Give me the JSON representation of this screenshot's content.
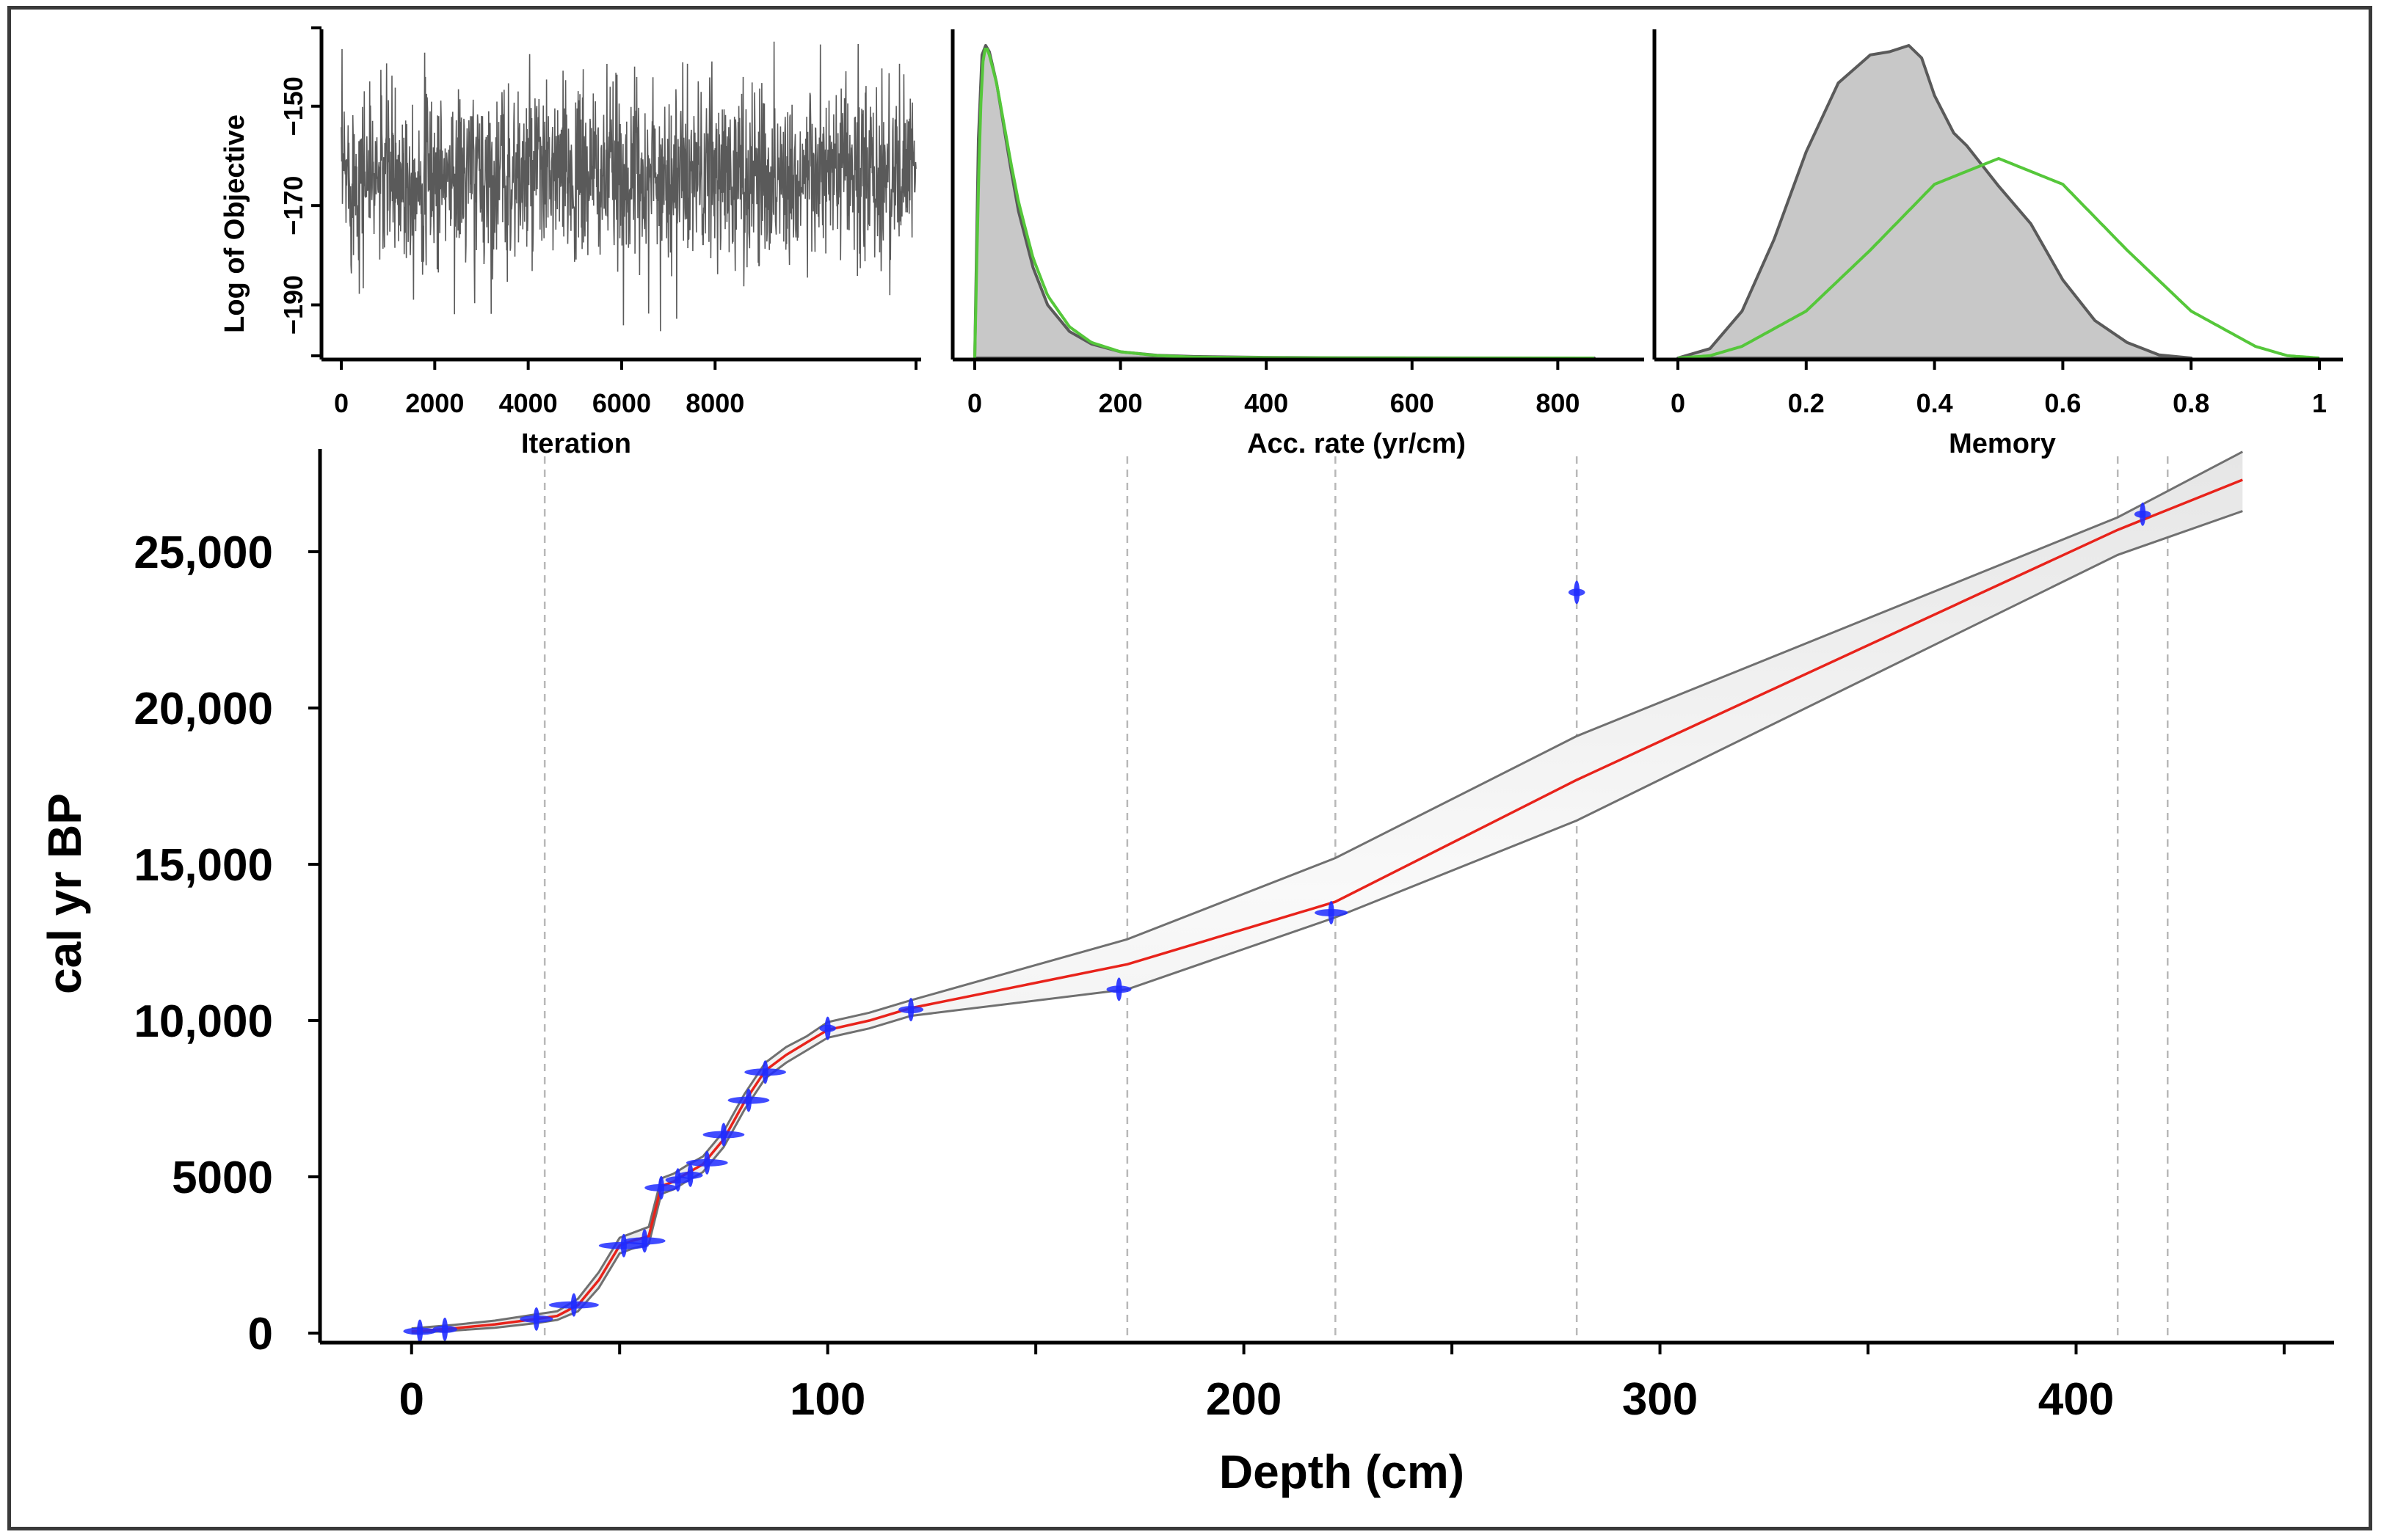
{
  "chart_data": [
    {
      "type": "line",
      "panel": "trace",
      "title": "",
      "xlabel": "Iteration",
      "ylabel": "Log of Objective",
      "x_ticks": [
        0,
        2000,
        4000,
        6000,
        8000
      ],
      "x_tick_labels": [
        "0",
        "2000",
        "4000",
        "6000",
        "8000"
      ],
      "y_ticks": [
        -150,
        -170,
        -190
      ],
      "y_tick_labels": [
        "−150",
        "−170",
        "−190"
      ],
      "xlim": [
        0,
        12300
      ],
      "ylim": [
        -201,
        -136
      ],
      "series": [
        {
          "name": "log objective trace",
          "mean": -164,
          "sd": 9,
          "min": -198,
          "max": -137,
          "n_iter": 12300
        }
      ]
    },
    {
      "type": "area",
      "panel": "accumulation rate",
      "xlabel": "Acc. rate (yr/cm)",
      "x_ticks": [
        0,
        200,
        400,
        600,
        800
      ],
      "x_tick_labels": [
        "0",
        "200",
        "400",
        "600",
        "800"
      ],
      "xlim": [
        0,
        850
      ],
      "series": [
        {
          "name": "posterior",
          "x": [
            0,
            5,
            10,
            15,
            20,
            30,
            40,
            50,
            60,
            80,
            100,
            130,
            160,
            200,
            250,
            300,
            400,
            500,
            600,
            700,
            850
          ],
          "values": [
            0,
            0.7,
            0.97,
            1.0,
            0.98,
            0.88,
            0.74,
            0.6,
            0.47,
            0.29,
            0.17,
            0.085,
            0.045,
            0.02,
            0.009,
            0.005,
            0.002,
            0.001,
            0.0005,
            0.0002,
            0
          ]
        },
        {
          "name": "prior",
          "x": [
            0,
            5,
            10,
            15,
            20,
            30,
            40,
            50,
            60,
            80,
            100,
            130,
            160,
            200,
            250,
            300,
            400,
            500,
            600,
            700,
            850
          ],
          "values": [
            0,
            0.55,
            0.93,
            1.0,
            0.97,
            0.88,
            0.75,
            0.62,
            0.5,
            0.32,
            0.2,
            0.1,
            0.05,
            0.02,
            0.008,
            0.003,
            0.001,
            0.0003,
            0.0001,
            0,
            0
          ]
        }
      ]
    },
    {
      "type": "area",
      "panel": "memory",
      "xlabel": "Memory",
      "x_ticks": [
        0,
        0.2,
        0.4,
        0.6,
        0.8,
        1
      ],
      "x_tick_labels": [
        "0",
        "0.2",
        "0.4",
        "0.6",
        "0.8",
        "1"
      ],
      "xlim": [
        0,
        1
      ],
      "series": [
        {
          "name": "posterior",
          "x": [
            0,
            0.05,
            0.1,
            0.15,
            0.2,
            0.25,
            0.3,
            0.33,
            0.36,
            0.38,
            0.4,
            0.43,
            0.45,
            0.5,
            0.55,
            0.6,
            0.65,
            0.7,
            0.75,
            0.8
          ],
          "values": [
            0,
            0.03,
            0.15,
            0.38,
            0.66,
            0.88,
            0.97,
            0.98,
            1.0,
            0.96,
            0.84,
            0.72,
            0.68,
            0.55,
            0.43,
            0.25,
            0.12,
            0.05,
            0.01,
            0
          ]
        },
        {
          "name": "prior",
          "x": [
            0,
            0.05,
            0.1,
            0.2,
            0.3,
            0.4,
            0.5,
            0.6,
            0.7,
            0.8,
            0.9,
            0.95,
            1.0
          ],
          "values": [
            0,
            0.01,
            0.05,
            0.2,
            0.46,
            0.74,
            0.85,
            0.74,
            0.46,
            0.2,
            0.05,
            0.01,
            0
          ]
        }
      ]
    },
    {
      "type": "line",
      "panel": "age-depth model",
      "title": "",
      "xlabel": "Depth (cm)",
      "ylabel": "cal yr BP",
      "x_ticks": [
        0,
        100,
        200,
        300,
        400
      ],
      "x_tick_labels": [
        "0",
        "100",
        "200",
        "300",
        "400"
      ],
      "x_minor_ticks": [
        50,
        150,
        250,
        350,
        450
      ],
      "y_ticks": [
        0,
        5000,
        10000,
        15000,
        20000,
        25000
      ],
      "y_tick_labels": [
        "0",
        "5000",
        "10,000",
        "15,000",
        "20,000",
        "25,000"
      ],
      "xlim": [
        -22,
        462
      ],
      "ylim": [
        -550,
        28600
      ],
      "hiatus_depths": [
        32,
        172,
        222,
        280,
        410,
        422
      ],
      "series": [
        {
          "name": "mean age model",
          "x": [
            0,
            10,
            20,
            30,
            35,
            40,
            45,
            50,
            53,
            57,
            60,
            63,
            66,
            70,
            75,
            80,
            85,
            90,
            95,
            100,
            110,
            120,
            172,
            222,
            280,
            410,
            440
          ],
          "values": [
            50,
            150,
            280,
            450,
            550,
            900,
            1700,
            2800,
            2950,
            3100,
            4700,
            4850,
            5100,
            5400,
            6200,
            7400,
            8400,
            8900,
            9300,
            9700,
            10000,
            10400,
            11800,
            13800,
            17700,
            25700,
            27300
          ]
        },
        {
          "name": "upper 95% range",
          "x": [
            0,
            10,
            20,
            30,
            35,
            40,
            45,
            50,
            53,
            57,
            60,
            63,
            66,
            70,
            75,
            80,
            85,
            90,
            95,
            100,
            110,
            120,
            172,
            222,
            280,
            410,
            440
          ],
          "values": [
            150,
            260,
            400,
            600,
            700,
            1100,
            1950,
            3050,
            3200,
            3400,
            4950,
            5100,
            5350,
            5650,
            6450,
            7650,
            8650,
            9150,
            9500,
            9950,
            10250,
            10650,
            12600,
            15200,
            19100,
            26100,
            28200
          ]
        },
        {
          "name": "lower 95% range",
          "x": [
            0,
            10,
            20,
            30,
            35,
            40,
            45,
            50,
            53,
            57,
            60,
            63,
            66,
            70,
            75,
            80,
            85,
            90,
            95,
            100,
            110,
            120,
            172,
            222,
            280,
            410,
            440
          ],
          "values": [
            0,
            80,
            170,
            320,
            420,
            700,
            1450,
            2550,
            2700,
            2850,
            4450,
            4600,
            4850,
            5150,
            5950,
            7150,
            8150,
            8650,
            9050,
            9450,
            9750,
            10150,
            11000,
            13300,
            16400,
            24900,
            26300
          ]
        }
      ],
      "dates": [
        {
          "depth": 2,
          "age": 60,
          "width_cm": 8
        },
        {
          "depth": 8,
          "age": 120,
          "width_cm": 6
        },
        {
          "depth": 30,
          "age": 450,
          "width_cm": 8
        },
        {
          "depth": 39,
          "age": 900,
          "width_cm": 12
        },
        {
          "depth": 51,
          "age": 2800,
          "width_cm": 12
        },
        {
          "depth": 56,
          "age": 2950,
          "width_cm": 10
        },
        {
          "depth": 60,
          "age": 4650,
          "width_cm": 8
        },
        {
          "depth": 64,
          "age": 4900,
          "width_cm": 6
        },
        {
          "depth": 67,
          "age": 5050,
          "width_cm": 6
        },
        {
          "depth": 71,
          "age": 5450,
          "width_cm": 10
        },
        {
          "depth": 75,
          "age": 6350,
          "width_cm": 10
        },
        {
          "depth": 81,
          "age": 7450,
          "width_cm": 10
        },
        {
          "depth": 85,
          "age": 8350,
          "width_cm": 10
        },
        {
          "depth": 100,
          "age": 9750,
          "width_cm": 4
        },
        {
          "depth": 120,
          "age": 10350,
          "width_cm": 6
        },
        {
          "depth": 170,
          "age": 11000,
          "width_cm": 6
        },
        {
          "depth": 221,
          "age": 13450,
          "width_cm": 8
        },
        {
          "depth": 280,
          "age": 23700,
          "width_cm": 4
        },
        {
          "depth": 416,
          "age": 26200,
          "width_cm": 4
        }
      ]
    }
  ]
}
